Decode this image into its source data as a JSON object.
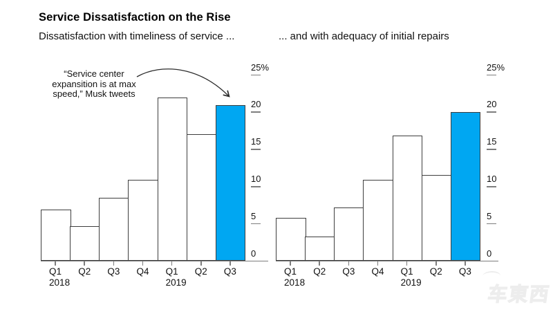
{
  "header": {
    "title": "Service Dissatisfaction on the Rise",
    "subtitle_left": "Dissatisfaction with timeliness of service ...",
    "subtitle_right": "... and with adequacy of initial repairs"
  },
  "annotation": {
    "lines": [
      "“Service center",
      "expansition is at max",
      "speed,” Musk tweets"
    ]
  },
  "colors": {
    "highlight_blue": "#00a7f2",
    "bar_stroke": "#3d3d3d",
    "axis_gray": "#7d7d7d",
    "text_black": "#000000"
  },
  "watermark": {
    "text": "车東西"
  },
  "chart_data": [
    {
      "type": "bar",
      "title": "Dissatisfaction with timeliness of service ...",
      "categories": [
        "Q1",
        "Q2",
        "Q3",
        "Q4",
        "Q1",
        "Q2",
        "Q3"
      ],
      "year_labels": [
        "2018",
        "",
        "",
        "",
        "2019",
        "",
        ""
      ],
      "values": [
        6.9,
        4.7,
        8.5,
        10.9,
        22.0,
        17.1,
        21.0
      ],
      "unit": "%",
      "ylim": [
        0,
        25
      ],
      "yticks": [
        0,
        5,
        10,
        15,
        20,
        25
      ],
      "ytick_labels": [
        "0",
        "5",
        "10",
        "15",
        "20",
        "25%"
      ],
      "highlight_index": 6,
      "highlight_category": "Q3 2019",
      "annotation": "“Service center expansition is at max speed,” Musk tweets",
      "legend": "none",
      "grid": "off",
      "axis_side": "right"
    },
    {
      "type": "bar",
      "title": "... and with adequacy of initial repairs",
      "categories": [
        "Q1",
        "Q2",
        "Q3",
        "Q4",
        "Q1",
        "Q2",
        "Q3"
      ],
      "year_labels": [
        "2018",
        "",
        "",
        "",
        "2019",
        "",
        ""
      ],
      "values": [
        5.8,
        3.3,
        7.2,
        10.9,
        16.9,
        11.6,
        20.0
      ],
      "unit": "%",
      "ylim": [
        0,
        25
      ],
      "yticks": [
        0,
        5,
        10,
        15,
        20,
        25
      ],
      "ytick_labels": [
        "0",
        "5",
        "10",
        "15",
        "20",
        "25%"
      ],
      "highlight_index": 6,
      "highlight_category": "Q3 2019",
      "legend": "none",
      "grid": "off",
      "axis_side": "right"
    }
  ]
}
